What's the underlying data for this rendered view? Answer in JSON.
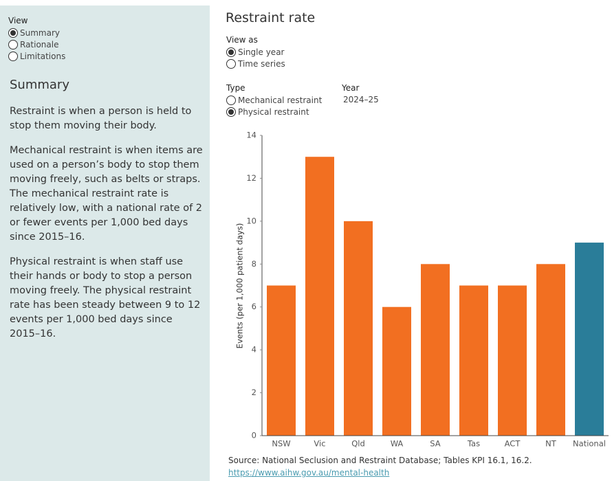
{
  "sidebar": {
    "view_label": "View",
    "view_options": [
      "Summary",
      "Rationale",
      "Limitations"
    ],
    "view_selected": 0,
    "heading": "Summary",
    "paragraphs": [
      "Restraint is when a person is held to stop them moving their body.",
      "Mechanical restraint is when items are used on a person’s body to stop them moving freely, such as belts or straps. The mechanical restraint rate is relatively low, with a national rate of 2 or fewer events per 1,000 bed days since 2015–16.",
      "Physical restraint is when staff use their hands or body to stop a person moving freely. The physical restraint rate has been steady between 9 to 12 events per 1,000 bed days since 2015–16."
    ]
  },
  "controls": {
    "title": "Restraint rate",
    "view_as": {
      "label": "View as",
      "options": [
        "Single year",
        "Time series"
      ],
      "selected": 0
    },
    "type": {
      "label": "Type",
      "options": [
        "Mechanical restraint",
        "Physical restraint"
      ],
      "selected": 1
    },
    "year": {
      "label": "Year",
      "value": "2024–25"
    }
  },
  "chart_data": {
    "type": "bar",
    "y_label": "Events (per 1,000 patient days)",
    "categories": [
      "NSW",
      "Vic",
      "Qld",
      "WA",
      "SA",
      "Tas",
      "ACT",
      "NT",
      "National"
    ],
    "values": [
      7,
      13,
      10,
      6,
      8,
      7,
      7,
      8,
      9
    ],
    "colors": [
      "#f26f21",
      "#f26f21",
      "#f26f21",
      "#f26f21",
      "#f26f21",
      "#f26f21",
      "#f26f21",
      "#f26f21",
      "#2a7d99"
    ],
    "ylim": [
      0,
      14
    ],
    "yticks": [
      0,
      2,
      4,
      6,
      8,
      10,
      12,
      14
    ]
  },
  "footer": {
    "source": "Source: National Seclusion and Restraint Database; Tables KPI 16.1, 16.2.",
    "link": "https://www.aihw.gov.au/mental-health"
  }
}
